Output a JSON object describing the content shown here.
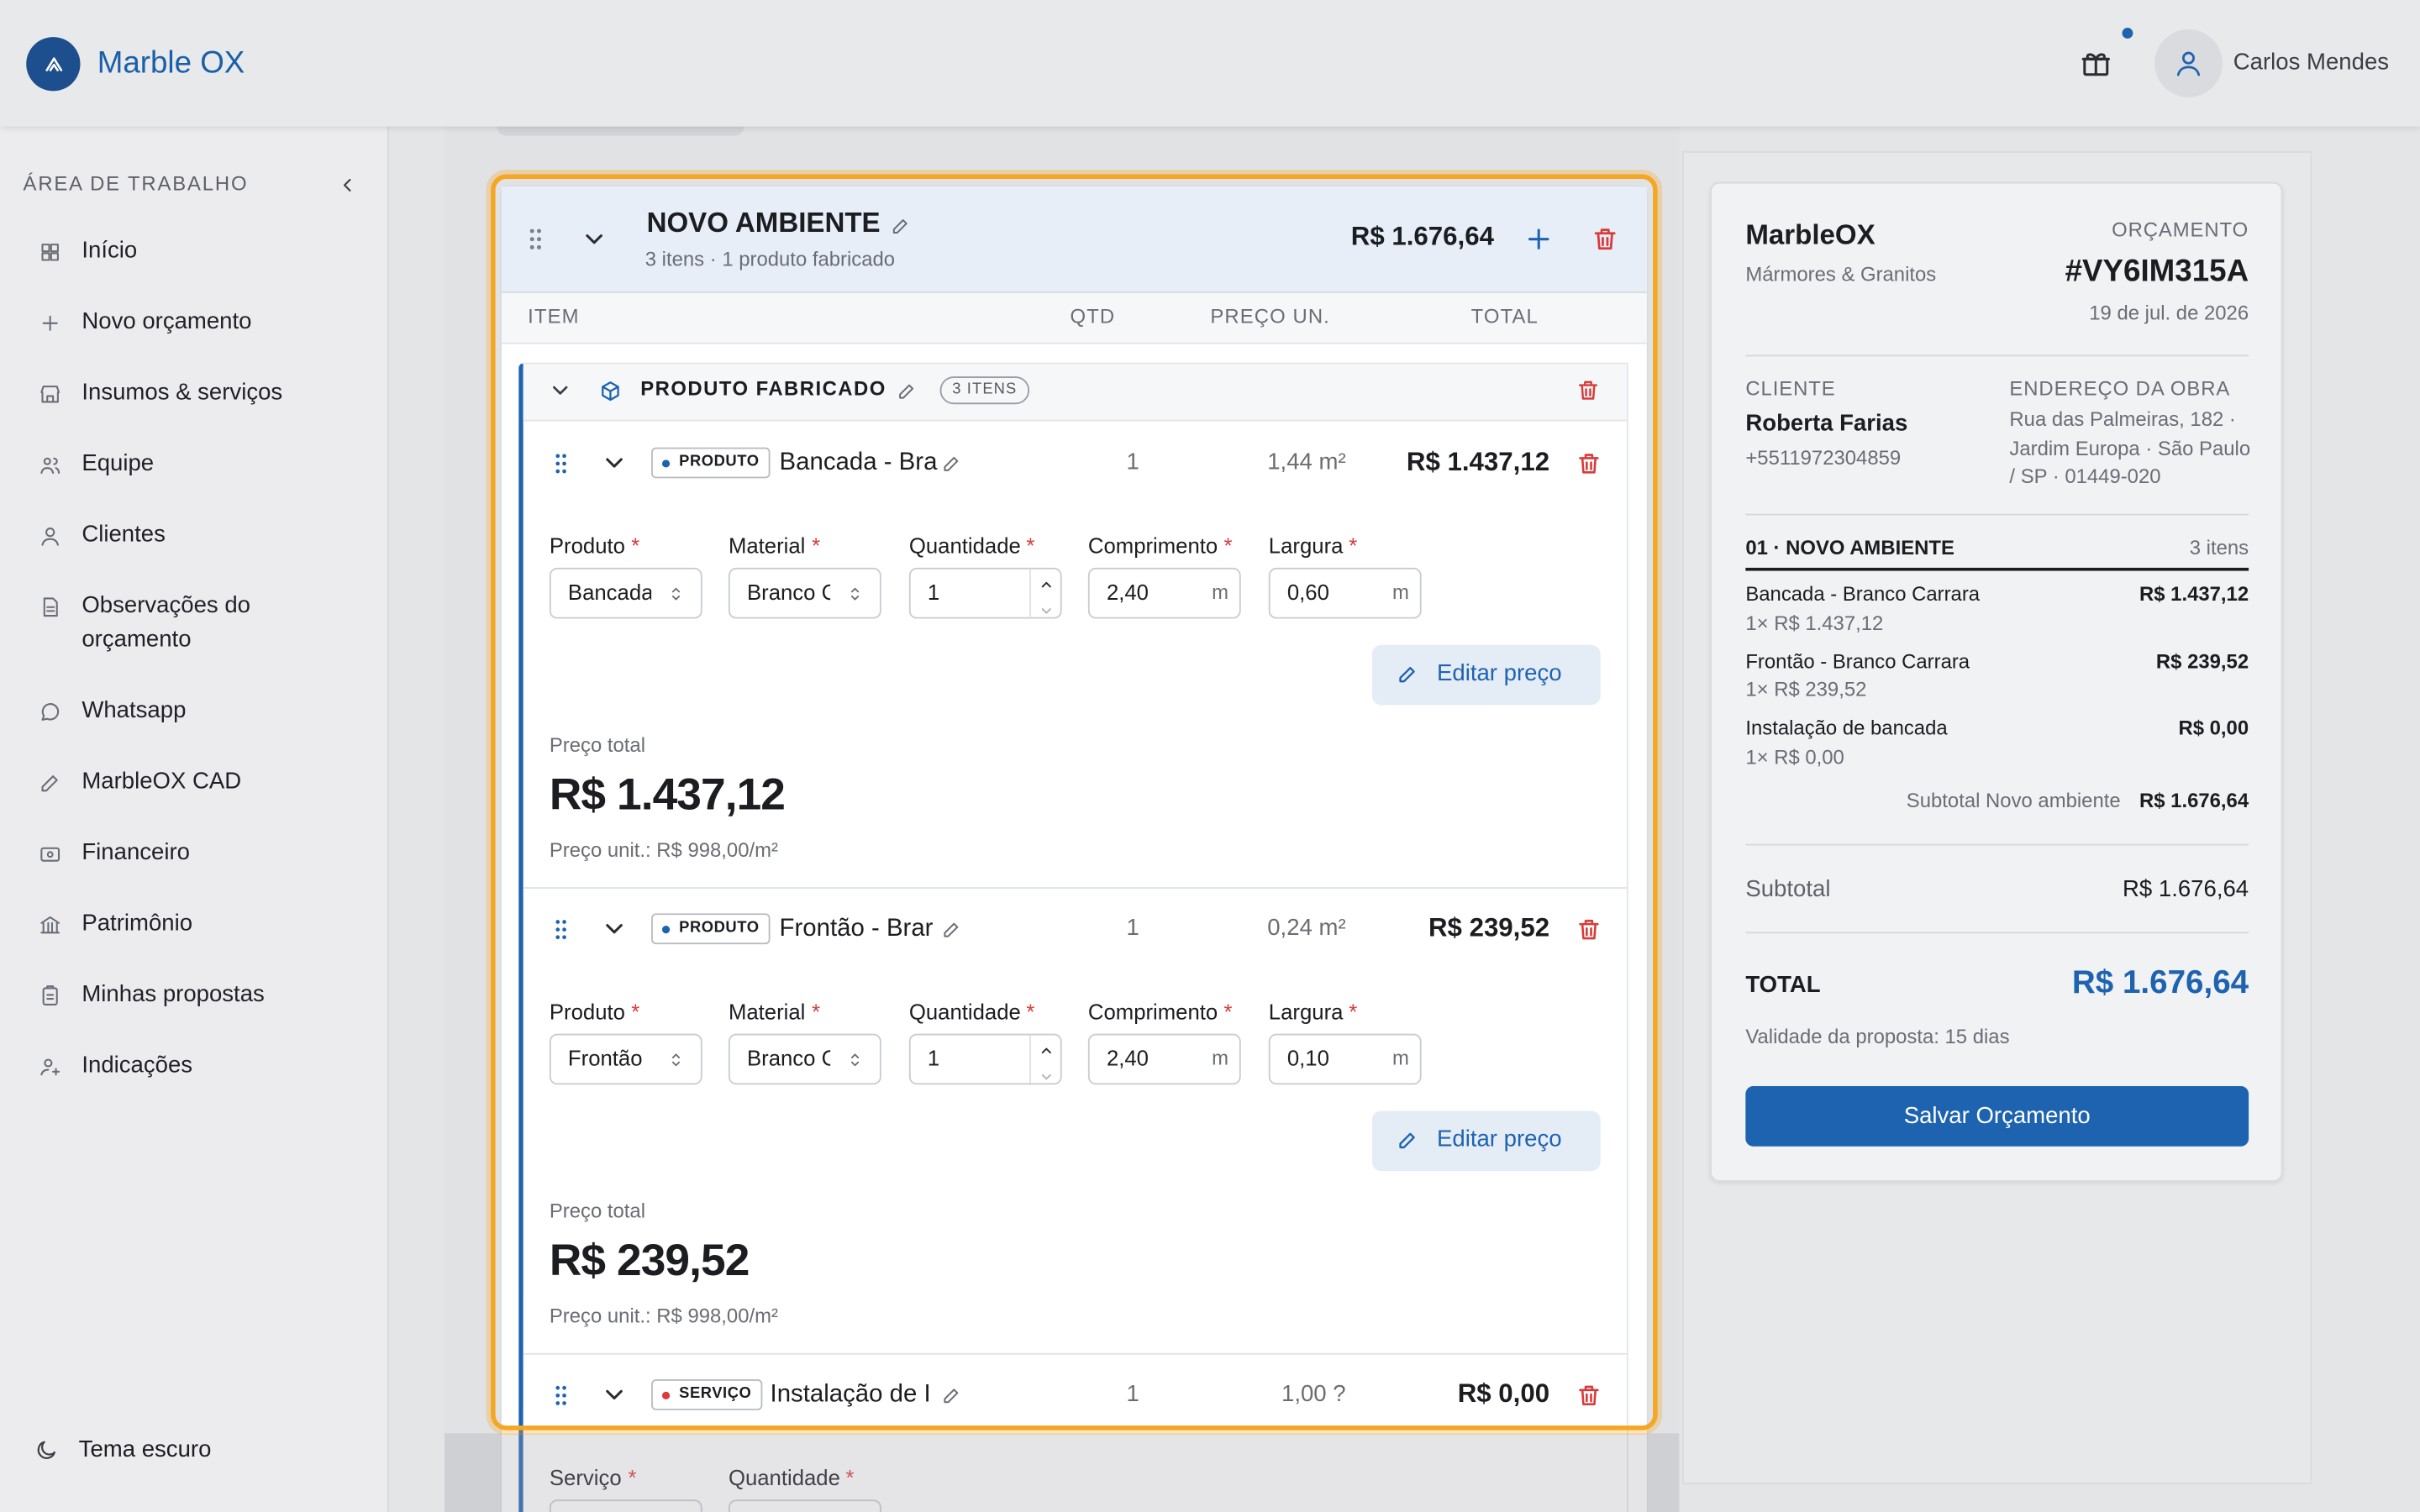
{
  "header": {
    "brand": "Marble OX",
    "user": "Carlos Mendes"
  },
  "sidebar": {
    "title": "ÁREA DE TRABALHO",
    "items": [
      "Início",
      "Novo orçamento",
      "Insumos & serviços",
      "Equipe",
      "Clientes",
      "Observações do orçamento",
      "Whatsapp",
      "MarbleOX CAD",
      "Financeiro",
      "Patrimônio",
      "Minhas propostas",
      "Indicações"
    ],
    "footer": "Tema escuro"
  },
  "ambiente": {
    "title": "NOVO AMBIENTE",
    "subtitle": "3 itens · 1 produto fabricado",
    "total": "R$ 1.676,64",
    "columns": [
      "ITEM",
      "QTD",
      "PREÇO UN.",
      "TOTAL"
    ],
    "group": {
      "title": "PRODUTO FABRICADO",
      "badge": "3 ITENS"
    },
    "required_mark": "*",
    "items": [
      {
        "tag": "PRODUTO",
        "name": "Bancada - Bra",
        "qty": "1",
        "unit": "1,44 m²",
        "total": "R$ 1.437,12",
        "fields": [
          {
            "label": "Produto",
            "value": "Bancada"
          },
          {
            "label": "Material",
            "value": "Branco Ca"
          },
          {
            "label": "Quantidade",
            "value": "1"
          },
          {
            "label": "Comprimento",
            "value": "2,40",
            "unit": "m"
          },
          {
            "label": "Largura",
            "value": "0,60",
            "unit": "m"
          }
        ],
        "edit": "Editar preço",
        "price_label": "Preço total",
        "price": "R$ 1.437,12",
        "unit_price": "Preço unit.: R$ 998,00/m²"
      },
      {
        "tag": "PRODUTO",
        "name": "Frontão - Brar",
        "qty": "1",
        "unit": "0,24 m²",
        "total": "R$ 239,52",
        "fields": [
          {
            "label": "Produto",
            "value": "Frontão"
          },
          {
            "label": "Material",
            "value": "Branco Ca"
          },
          {
            "label": "Quantidade",
            "value": "1"
          },
          {
            "label": "Comprimento",
            "value": "2,40",
            "unit": "m"
          },
          {
            "label": "Largura",
            "value": "0,10",
            "unit": "m"
          }
        ],
        "edit": "Editar preço",
        "price_label": "Preço total",
        "price": "R$ 239,52",
        "unit_price": "Preço unit.: R$ 998,00/m²"
      },
      {
        "tag": "SERVIÇO",
        "name": "Instalação de I",
        "qty": "1",
        "unit": "1,00 ?",
        "total": "R$ 0,00",
        "fields": [
          {
            "label": "Serviço"
          },
          {
            "label": "Quantidade"
          }
        ]
      }
    ]
  },
  "summary": {
    "company": "MarbleOX",
    "company_sub": "Mármores & Granitos",
    "doc_label": "ORÇAMENTO",
    "doc_id": "#VY6IM315A",
    "date": "19 de jul. de 2026",
    "client_label": "CLIENTE",
    "client_name": "Roberta Farias",
    "client_phone": "+5511972304859",
    "address_label": "ENDEREÇO DA OBRA",
    "address": "Rua das Palmeiras, 182 · Jardim Europa · São Paulo / SP · 01449-020",
    "section": "01 · NOVO AMBIENTE",
    "section_count": "3 itens",
    "lines": [
      {
        "name": "Bancada - Branco Carrara",
        "sub": "1× R$ 1.437,12",
        "total": "R$ 1.437,12"
      },
      {
        "name": "Frontão - Branco Carrara",
        "sub": "1× R$ 239,52",
        "total": "R$ 239,52"
      },
      {
        "name": "Instalação de bancada",
        "sub": "1× R$ 0,00",
        "total": "R$ 0,00"
      }
    ],
    "section_subtotal_label": "Subtotal Novo ambiente",
    "section_subtotal": "R$ 1.676,64",
    "subtotal_label": "Subtotal",
    "subtotal": "R$ 1.676,64",
    "total_label": "TOTAL",
    "total": "R$ 1.676,64",
    "validity": "Validade da proposta: 15 dias",
    "button": "Salvar Orçamento"
  }
}
